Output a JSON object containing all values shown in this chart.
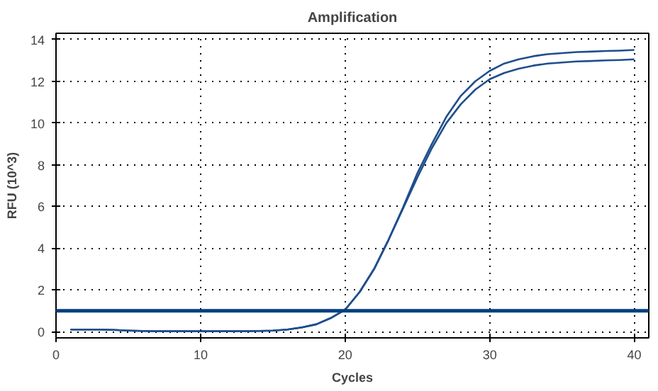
{
  "chart_data": {
    "type": "line",
    "title": "Amplification",
    "xlabel": "Cycles",
    "ylabel": "RFU (10^3)",
    "x": [
      1,
      2,
      3,
      4,
      5,
      6,
      7,
      8,
      9,
      10,
      11,
      12,
      13,
      14,
      15,
      16,
      17,
      18,
      19,
      20,
      21,
      22,
      23,
      24,
      25,
      26,
      27,
      28,
      29,
      30,
      31,
      32,
      33,
      34,
      35,
      36,
      37,
      38,
      39,
      40
    ],
    "series": [
      {
        "color": "#1f4e8c",
        "values": [
          0.1,
          0.1,
          0.1,
          0.08,
          0.05,
          0.03,
          0.02,
          0.02,
          0.02,
          0.02,
          0.02,
          0.02,
          0.02,
          0.03,
          0.05,
          0.1,
          0.2,
          0.35,
          0.65,
          1.05,
          1.9,
          3.0,
          4.4,
          5.95,
          7.6,
          9.0,
          10.3,
          11.3,
          12.0,
          12.5,
          12.85,
          13.05,
          13.2,
          13.3,
          13.35,
          13.4,
          13.42,
          13.45,
          13.47,
          13.5
        ]
      },
      {
        "color": "#1f4e8c",
        "values": [
          0.1,
          0.1,
          0.1,
          0.08,
          0.05,
          0.03,
          0.02,
          0.02,
          0.02,
          0.02,
          0.02,
          0.02,
          0.02,
          0.03,
          0.05,
          0.1,
          0.2,
          0.35,
          0.65,
          1.05,
          1.9,
          3.0,
          4.4,
          5.9,
          7.4,
          8.8,
          10.0,
          10.9,
          11.6,
          12.1,
          12.4,
          12.6,
          12.75,
          12.85,
          12.9,
          12.95,
          12.97,
          13.0,
          13.02,
          13.05
        ]
      }
    ],
    "ref_lines": [
      {
        "axis": "y",
        "value": 1,
        "color": "#003f7f"
      }
    ],
    "xlim": [
      0,
      41
    ],
    "xticks": [
      0,
      10,
      20,
      30,
      40
    ],
    "ylim": [
      -0.3,
      14.3
    ],
    "yticks": [
      0,
      2,
      4,
      6,
      8,
      10,
      12,
      14
    ],
    "grid": true,
    "line_style": "solid",
    "marker": "none"
  }
}
